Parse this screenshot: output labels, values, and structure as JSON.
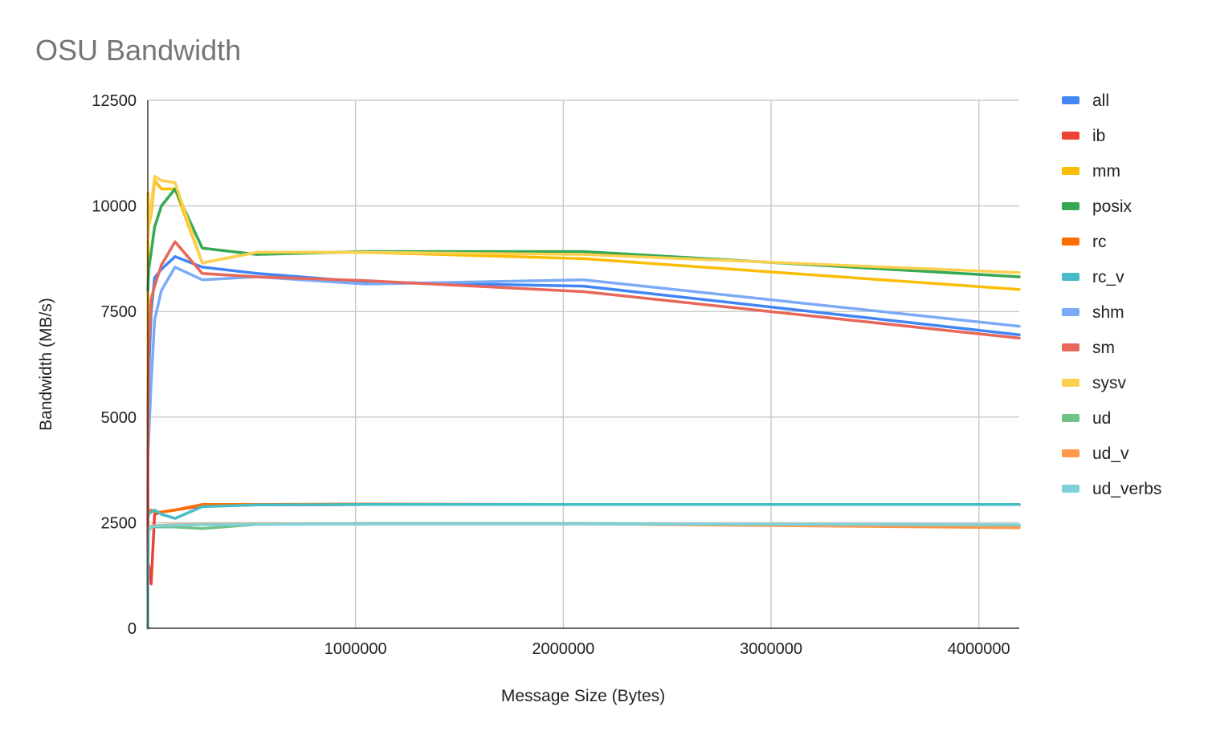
{
  "chart_data": {
    "type": "line",
    "title": "OSU Bandwidth",
    "xlabel": "Message Size (Bytes)",
    "ylabel": "Bandwidth (MB/s)",
    "xlim": [
      0,
      4194304
    ],
    "ylim": [
      0,
      12500
    ],
    "x_ticks": [
      1000000,
      2000000,
      3000000,
      4000000
    ],
    "x_tick_labels": [
      "1000000",
      "2000000",
      "3000000",
      "4000000"
    ],
    "y_ticks": [
      0,
      2500,
      5000,
      7500,
      10000,
      12500
    ],
    "y_tick_labels": [
      "0",
      "2500",
      "5000",
      "7500",
      "10000",
      "12500"
    ],
    "grid": true,
    "legend_position": "right",
    "x": [
      0,
      1024,
      4096,
      16384,
      32768,
      65536,
      131072,
      262144,
      524288,
      1048576,
      2097152,
      4194304
    ],
    "series": [
      {
        "name": "all",
        "color": "#4285f4",
        "values": [
          800,
          5000,
          6000,
          7500,
          8300,
          8500,
          8800,
          8550,
          8400,
          8200,
          8100,
          6950
        ]
      },
      {
        "name": "ib",
        "color": "#ea4335",
        "values": [
          0,
          1500,
          1500,
          1050,
          2700,
          2750,
          2800,
          2900,
          2920,
          2930,
          2930,
          2930
        ]
      },
      {
        "name": "mm",
        "color": "#fbbc04",
        "values": [
          2500,
          10300,
          9500,
          9800,
          10600,
          10400,
          10400,
          8650,
          8900,
          8900,
          8750,
          8020
        ]
      },
      {
        "name": "posix",
        "color": "#34a853",
        "values": [
          8000,
          8100,
          8500,
          8900,
          9500,
          10000,
          10400,
          9000,
          8850,
          8920,
          8920,
          8320
        ]
      },
      {
        "name": "rc",
        "color": "#ff6d01",
        "values": [
          1500,
          2650,
          2750,
          2800,
          2750,
          2750,
          2800,
          2930,
          2930,
          2940,
          2930,
          2930
        ]
      },
      {
        "name": "rc_v",
        "color": "#46bdc6",
        "values": [
          0,
          2600,
          2700,
          2750,
          2800,
          2700,
          2600,
          2880,
          2920,
          2930,
          2930,
          2930
        ]
      },
      {
        "name": "shm",
        "color": "#7baaf7",
        "values": [
          1200,
          4100,
          4500,
          5800,
          7300,
          8000,
          8550,
          8250,
          8320,
          8150,
          8250,
          7150
        ]
      },
      {
        "name": "sm",
        "color": "#e8675a",
        "values": [
          1000,
          5300,
          6600,
          7800,
          8100,
          8600,
          9150,
          8400,
          8320,
          8230,
          7970,
          6870
        ]
      },
      {
        "name": "sysv",
        "color": "#fcd04f",
        "values": [
          10200,
          9200,
          9500,
          10000,
          10700,
          10600,
          10550,
          8650,
          8900,
          8900,
          8850,
          8420
        ]
      },
      {
        "name": "ud",
        "color": "#71c287",
        "values": [
          0,
          1500,
          2300,
          2400,
          2400,
          2400,
          2400,
          2360,
          2460,
          2480,
          2480,
          2420
        ]
      },
      {
        "name": "ud_v",
        "color": "#ff994d",
        "values": [
          0,
          1800,
          2400,
          2420,
          2430,
          2440,
          2450,
          2460,
          2470,
          2470,
          2470,
          2380
        ]
      },
      {
        "name": "ud_verbs",
        "color": "#7ed1d7",
        "values": [
          0,
          1600,
          2350,
          2400,
          2420,
          2430,
          2440,
          2450,
          2460,
          2470,
          2470,
          2450
        ]
      }
    ]
  }
}
